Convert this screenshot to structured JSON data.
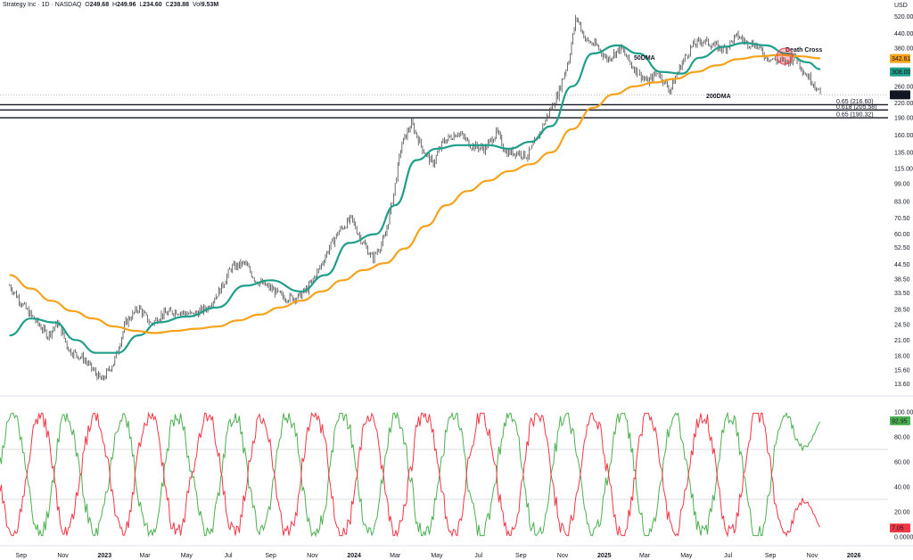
{
  "header": {
    "symbol": "Strategy Inc",
    "timeframe": "1D",
    "exchange": "NASDAQ",
    "open_label": "O",
    "open": "249.68",
    "high_label": "H",
    "high": "249.96",
    "low_label": "L",
    "low": "234.60",
    "close_label": "C",
    "close": "238.88",
    "vol_label": "Vol",
    "vol": "9.53M"
  },
  "currency": "USD",
  "chart_data": [
    {
      "type": "line",
      "title": "",
      "scale": "log",
      "ylim": [
        12.5,
        560
      ],
      "y_ticks": [
        "520.00",
        "440.00",
        "380.00",
        "260.00",
        "220.00",
        "190.00",
        "160.00",
        "135.00",
        "115.00",
        "99.00",
        "83.00",
        "70.50",
        "60.00",
        "52.50",
        "44.50",
        "38.50",
        "33.50",
        "28.50",
        "24.50",
        "21.00",
        "18.00",
        "15.60",
        "13.60"
      ],
      "x_ticks": [
        "Sep",
        "Nov",
        "2023",
        "Mar",
        "May",
        "Jul",
        "Sep",
        "Nov",
        "2024",
        "Mar",
        "May",
        "Jul",
        "Sep",
        "Nov",
        "2025",
        "Mar",
        "May",
        "Jul",
        "Sep",
        "Nov",
        "2026"
      ],
      "price_path": {
        "name": "",
        "points": [
          [
            "2022-08-15",
            36
          ],
          [
            "2022-09-10",
            28
          ],
          [
            "2022-10-10",
            22
          ],
          [
            "2022-10-25",
            25
          ],
          [
            "2022-11-10",
            19
          ],
          [
            "2022-12-01",
            17.5
          ],
          [
            "2022-12-28",
            14
          ],
          [
            "2023-01-15",
            17
          ],
          [
            "2023-02-01",
            25
          ],
          [
            "2023-02-20",
            29
          ],
          [
            "2023-03-10",
            24.5
          ],
          [
            "2023-03-25",
            27
          ],
          [
            "2023-04-15",
            28
          ],
          [
            "2023-05-10",
            27
          ],
          [
            "2023-06-01",
            29
          ],
          [
            "2023-06-20",
            35
          ],
          [
            "2023-07-05",
            43
          ],
          [
            "2023-07-25",
            45
          ],
          [
            "2023-08-10",
            38
          ],
          [
            "2023-09-01",
            35
          ],
          [
            "2023-09-20",
            32
          ],
          [
            "2023-10-10",
            32
          ],
          [
            "2023-10-25",
            35
          ],
          [
            "2023-11-10",
            42
          ],
          [
            "2023-11-25",
            52
          ],
          [
            "2023-12-10",
            62
          ],
          [
            "2023-12-28",
            70
          ],
          [
            "2024-01-10",
            58
          ],
          [
            "2024-01-28",
            47
          ],
          [
            "2024-02-15",
            58
          ],
          [
            "2024-02-28",
            90
          ],
          [
            "2024-03-10",
            145
          ],
          [
            "2024-03-25",
            180
          ],
          [
            "2024-04-10",
            140
          ],
          [
            "2024-04-25",
            120
          ],
          [
            "2024-05-10",
            150
          ],
          [
            "2024-06-01",
            165
          ],
          [
            "2024-06-20",
            145
          ],
          [
            "2024-07-10",
            140
          ],
          [
            "2024-07-28",
            165
          ],
          [
            "2024-08-10",
            135
          ],
          [
            "2024-08-28",
            135
          ],
          [
            "2024-09-10",
            130
          ],
          [
            "2024-09-25",
            155
          ],
          [
            "2024-10-10",
            195
          ],
          [
            "2024-10-25",
            240
          ],
          [
            "2024-11-10",
            340
          ],
          [
            "2024-11-21",
            520
          ],
          [
            "2024-12-05",
            410
          ],
          [
            "2024-12-20",
            390
          ],
          [
            "2025-01-05",
            340
          ],
          [
            "2025-01-25",
            380
          ],
          [
            "2025-02-10",
            320
          ],
          [
            "2025-03-05",
            270
          ],
          [
            "2025-03-20",
            300
          ],
          [
            "2025-04-07",
            250
          ],
          [
            "2025-04-25",
            330
          ],
          [
            "2025-05-10",
            390
          ],
          [
            "2025-05-25",
            410
          ],
          [
            "2025-06-10",
            390
          ],
          [
            "2025-06-25",
            375
          ],
          [
            "2025-07-15",
            430
          ],
          [
            "2025-07-28",
            400
          ],
          [
            "2025-08-10",
            395
          ],
          [
            "2025-08-25",
            350
          ],
          [
            "2025-09-10",
            335
          ],
          [
            "2025-09-25",
            330
          ],
          [
            "2025-10-08",
            350
          ],
          [
            "2025-10-20",
            300
          ],
          [
            "2025-11-03",
            270
          ],
          [
            "2025-11-13",
            238.88
          ]
        ]
      },
      "series": [
        {
          "name": "50DMA",
          "color": "#1f9e89",
          "points": [
            [
              "2022-08-15",
              22
            ],
            [
              "2022-09-15",
              26
            ],
            [
              "2022-10-20",
              25
            ],
            [
              "2022-11-20",
              21
            ],
            [
              "2022-12-20",
              18.5
            ],
            [
              "2023-01-20",
              18.5
            ],
            [
              "2023-02-20",
              22
            ],
            [
              "2023-03-20",
              25
            ],
            [
              "2023-05-01",
              26.5
            ],
            [
              "2023-06-15",
              29
            ],
            [
              "2023-07-25",
              36
            ],
            [
              "2023-09-01",
              38
            ],
            [
              "2023-10-15",
              34
            ],
            [
              "2023-11-20",
              40
            ],
            [
              "2023-12-25",
              55
            ],
            [
              "2024-02-01",
              60
            ],
            [
              "2024-03-01",
              80
            ],
            [
              "2024-04-01",
              125
            ],
            [
              "2024-05-01",
              140
            ],
            [
              "2024-06-01",
              145
            ],
            [
              "2024-07-15",
              145
            ],
            [
              "2024-08-15",
              140
            ],
            [
              "2024-09-15",
              150
            ],
            [
              "2024-10-15",
              175
            ],
            [
              "2024-11-15",
              260
            ],
            [
              "2024-12-15",
              360
            ],
            [
              "2025-01-20",
              390
            ],
            [
              "2025-02-20",
              360
            ],
            [
              "2025-03-25",
              300
            ],
            [
              "2025-04-25",
              295
            ],
            [
              "2025-05-20",
              345
            ],
            [
              "2025-06-25",
              385
            ],
            [
              "2025-07-25",
              400
            ],
            [
              "2025-08-25",
              390
            ],
            [
              "2025-09-25",
              360
            ],
            [
              "2025-10-25",
              330
            ],
            [
              "2025-11-13",
              308
            ]
          ]
        },
        {
          "name": "200DMA",
          "color": "#f7a21b",
          "points": [
            [
              "2022-08-15",
              40
            ],
            [
              "2022-09-15",
              35
            ],
            [
              "2022-10-15",
              31
            ],
            [
              "2022-11-15",
              28
            ],
            [
              "2022-12-15",
              26
            ],
            [
              "2023-01-15",
              24
            ],
            [
              "2023-02-15",
              23
            ],
            [
              "2023-03-15",
              22.5
            ],
            [
              "2023-04-15",
              23
            ],
            [
              "2023-05-15",
              23.5
            ],
            [
              "2023-06-15",
              24
            ],
            [
              "2023-07-15",
              25.5
            ],
            [
              "2023-08-15",
              27
            ],
            [
              "2023-09-15",
              29
            ],
            [
              "2023-10-15",
              31
            ],
            [
              "2023-11-15",
              34
            ],
            [
              "2023-12-15",
              38
            ],
            [
              "2024-01-15",
              42
            ],
            [
              "2024-02-15",
              45
            ],
            [
              "2024-03-15",
              52
            ],
            [
              "2024-04-15",
              65
            ],
            [
              "2024-05-15",
              80
            ],
            [
              "2024-06-15",
              92
            ],
            [
              "2024-07-15",
              102
            ],
            [
              "2024-08-15",
              112
            ],
            [
              "2024-09-15",
              120
            ],
            [
              "2024-10-15",
              135
            ],
            [
              "2024-11-15",
              170
            ],
            [
              "2024-12-15",
              210
            ],
            [
              "2025-01-15",
              240
            ],
            [
              "2025-02-15",
              260
            ],
            [
              "2025-03-15",
              270
            ],
            [
              "2025-04-15",
              280
            ],
            [
              "2025-05-15",
              300
            ],
            [
              "2025-06-15",
              320
            ],
            [
              "2025-07-15",
              340
            ],
            [
              "2025-08-15",
              350
            ],
            [
              "2025-09-15",
              355
            ],
            [
              "2025-10-15",
              350
            ],
            [
              "2025-11-13",
              343
            ]
          ]
        }
      ],
      "hlines": [
        {
          "level": 216.6,
          "label": "0.65 (216.60)"
        },
        {
          "level": 205.58,
          "label": "0.618 (205.58)"
        },
        {
          "level": 190.32,
          "label": "0.65 (190.32)"
        }
      ],
      "annotations": [
        {
          "text": "50DMA",
          "color": "#1f9e89"
        },
        {
          "text": "200DMA",
          "color": "#f7a21b"
        },
        {
          "text": "Death Cross",
          "color": "#e8414e",
          "date": "2025-09-22",
          "value": 350
        }
      ],
      "price_labels": [
        {
          "text": "342.61",
          "value": 342.61,
          "color": "#f7a21b"
        },
        {
          "text": "308.00",
          "value": 308,
          "color": "#1f9e89"
        },
        {
          "text": "238.88",
          "value": 238.88,
          "color": "#131722"
        }
      ],
      "grid": false
    },
    {
      "type": "line",
      "title": "",
      "ylim": [
        0,
        100
      ],
      "y_ticks": [
        "100.00",
        "80.00",
        "60.00",
        "40.00",
        "20.00",
        "0.0000"
      ],
      "guide_levels": [
        70,
        30
      ],
      "series": [
        {
          "name": "",
          "color": "#4caf50",
          "last": "92.95",
          "last_value": 92.95
        },
        {
          "name": "",
          "color": "#f23645",
          "last": "7.05",
          "last_value": 7.05
        }
      ]
    }
  ]
}
